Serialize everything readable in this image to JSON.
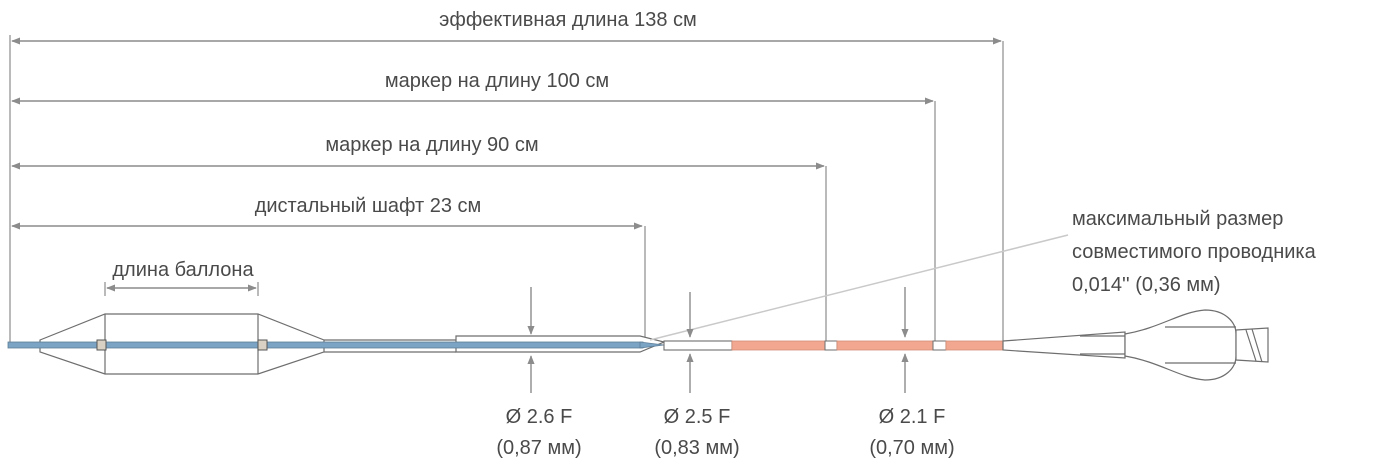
{
  "dimensions": {
    "effective_length": "эффективная длина 138 см",
    "marker_100": "маркер на длину 100 см",
    "marker_90": "маркер на длину 90 см",
    "distal_shaft": "дистальный шафт 23 см",
    "balloon_length": "длина баллона"
  },
  "guidewire": {
    "line1": "максимальный размер",
    "line2": "совместимого проводника",
    "line3": "0,014'' (0,36 мм)"
  },
  "diameters": [
    {
      "size": "Ø 2.6 F",
      "mm": "(0,87 мм)"
    },
    {
      "size": "Ø 2.5 F",
      "mm": "(0,83 мм)"
    },
    {
      "size": "Ø 2.1 F",
      "mm": "(0,70 мм)"
    }
  ],
  "colors": {
    "distal_shaft": "#7aa3c4",
    "proximal_shaft": "#f2a890",
    "lines": "#8c8c8c",
    "text": "#4a4a4a"
  }
}
